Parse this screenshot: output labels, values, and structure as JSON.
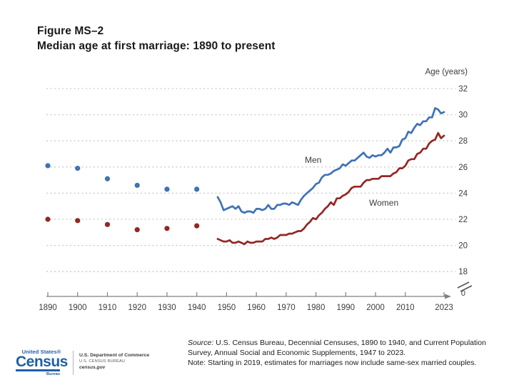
{
  "header": {
    "figure_label": "Figure MS–2",
    "title": "Median age at first marriage: 1890 to present"
  },
  "chart_data": {
    "type": "line",
    "title": "Median age at first marriage: 1890 to present",
    "y_axis": {
      "label": "Age (years)",
      "ticks": [
        32,
        30,
        28,
        26,
        24,
        22,
        20,
        18
      ],
      "break_label": "0",
      "range_shown": [
        18,
        32
      ],
      "grid": "dotted horizontal"
    },
    "x_axis": {
      "ticks": [
        1890,
        1900,
        1910,
        1920,
        1930,
        1940,
        1950,
        1960,
        1970,
        1980,
        1990,
        2000,
        2010,
        2023
      ],
      "range": [
        1890,
        2023
      ]
    },
    "colors": {
      "men": "#3f72b5",
      "women": "#932723",
      "grid": "#c9c9c9",
      "axis": "#808080",
      "tick_text": "#3c3c3c",
      "series_label_text": "#2b2b2b"
    },
    "series": [
      {
        "name": "Men",
        "color": "#3f72b5",
        "decennial": {
          "years": [
            1890,
            1900,
            1910,
            1920,
            1930,
            1940
          ],
          "values": [
            26.1,
            25.9,
            25.1,
            24.6,
            24.3,
            24.3
          ]
        },
        "annual": {
          "start_year": 1947,
          "end_year": 2023,
          "values": [
            23.7,
            23.3,
            22.7,
            22.8,
            22.9,
            23.0,
            22.8,
            23.0,
            22.6,
            22.5,
            22.6,
            22.6,
            22.5,
            22.8,
            22.8,
            22.7,
            22.8,
            23.1,
            22.8,
            22.8,
            23.1,
            23.1,
            23.2,
            23.2,
            23.1,
            23.3,
            23.2,
            23.1,
            23.5,
            23.8,
            24.0,
            24.2,
            24.4,
            24.7,
            24.8,
            25.2,
            25.4,
            25.4,
            25.5,
            25.7,
            25.8,
            25.9,
            26.2,
            26.1,
            26.3,
            26.5,
            26.5,
            26.7,
            26.9,
            27.1,
            26.8,
            26.7,
            26.9,
            26.8,
            26.9,
            26.9,
            27.1,
            27.4,
            27.1,
            27.5,
            27.5,
            27.6,
            28.1,
            28.2,
            28.7,
            28.6,
            29.0,
            29.3,
            29.2,
            29.5,
            29.5,
            29.8,
            29.8,
            30.5,
            30.4,
            30.1,
            30.2
          ]
        }
      },
      {
        "name": "Women",
        "color": "#932723",
        "decennial": {
          "years": [
            1890,
            1900,
            1910,
            1920,
            1930,
            1940
          ],
          "values": [
            22.0,
            21.9,
            21.6,
            21.2,
            21.3,
            21.5
          ]
        },
        "annual": {
          "start_year": 1947,
          "end_year": 2023,
          "values": [
            20.5,
            20.4,
            20.3,
            20.3,
            20.4,
            20.2,
            20.2,
            20.3,
            20.2,
            20.1,
            20.3,
            20.2,
            20.2,
            20.3,
            20.3,
            20.3,
            20.5,
            20.5,
            20.6,
            20.5,
            20.6,
            20.8,
            20.8,
            20.8,
            20.9,
            20.9,
            21.0,
            21.1,
            21.1,
            21.3,
            21.6,
            21.8,
            22.1,
            22.0,
            22.3,
            22.5,
            22.8,
            23.0,
            23.3,
            23.1,
            23.6,
            23.6,
            23.8,
            23.9,
            24.1,
            24.4,
            24.5,
            24.5,
            24.5,
            24.8,
            25.0,
            25.0,
            25.1,
            25.1,
            25.1,
            25.3,
            25.3,
            25.3,
            25.3,
            25.5,
            25.6,
            25.9,
            25.9,
            26.1,
            26.5,
            26.6,
            26.6,
            27.0,
            27.1,
            27.4,
            27.4,
            27.8,
            28.0,
            28.1,
            28.6,
            28.2,
            28.4
          ]
        }
      }
    ]
  },
  "footer": {
    "source_prefix": "Source:",
    "source_rest": "U.S. Census Bureau, Decennial Censuses, 1890 to 1940, and Current Population",
    "source_line2": "Survey, Annual Social and Economic Supplements, 1947 to 2023.",
    "note": "Note: Starting in 2019, estimates for marriages now include same-sex married couples."
  },
  "logo": {
    "us_label": "United States®",
    "wordmark": "Census",
    "bureau_label": "Bureau",
    "dept": "U.S. Department of Commerce",
    "bureau_line": "U.S. CENSUS BUREAU",
    "site": "census.gov",
    "brand_color": "#1f5fa6"
  }
}
